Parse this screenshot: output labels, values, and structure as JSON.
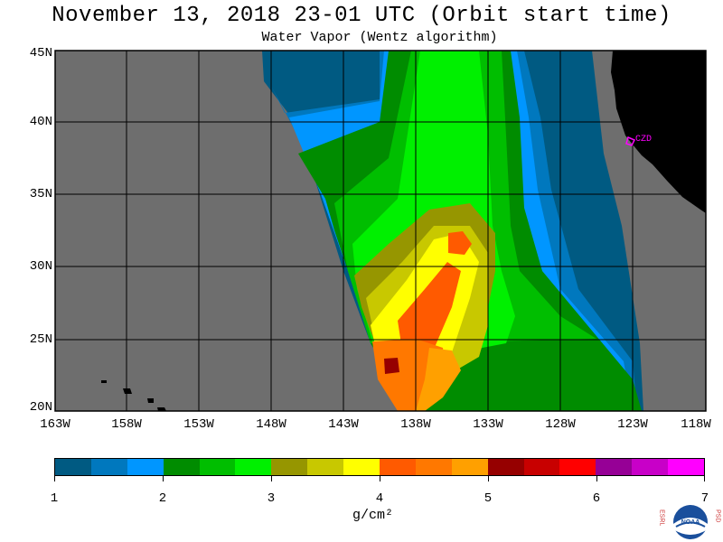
{
  "header": {
    "title": "November 13, 2018  23-01 UTC  (Orbit start time)",
    "subtitle": "Water Vapor (Wentz algorithm)"
  },
  "map": {
    "lat_labels": [
      "45N",
      "40N",
      "35N",
      "30N",
      "25N",
      "20N"
    ],
    "lon_labels": [
      "163W",
      "158W",
      "153W",
      "148W",
      "143W",
      "138W",
      "133W",
      "128W",
      "123W",
      "118W"
    ],
    "station_label": "CZD",
    "colors": {
      "ocean_no_data": "#6e6e6e",
      "land": "#000000",
      "grid": "#000000",
      "station": "#ff00ff"
    }
  },
  "legend": {
    "tick_labels": [
      "1",
      "2",
      "3",
      "4",
      "5",
      "6",
      "7"
    ],
    "unit": "g/cm²",
    "colors": [
      "#005a82",
      "#0078be",
      "#0096ff",
      "#008c00",
      "#00be00",
      "#00f000",
      "#969600",
      "#c8c800",
      "#ffff00",
      "#ff5a00",
      "#ff7800",
      "#ffa000",
      "#960000",
      "#c80000",
      "#ff0000",
      "#960096",
      "#c800c8",
      "#ff00ff"
    ]
  },
  "logo": {
    "left_letters": "ESRL",
    "right_letters": "PSD",
    "center_text": "NOAA"
  }
}
